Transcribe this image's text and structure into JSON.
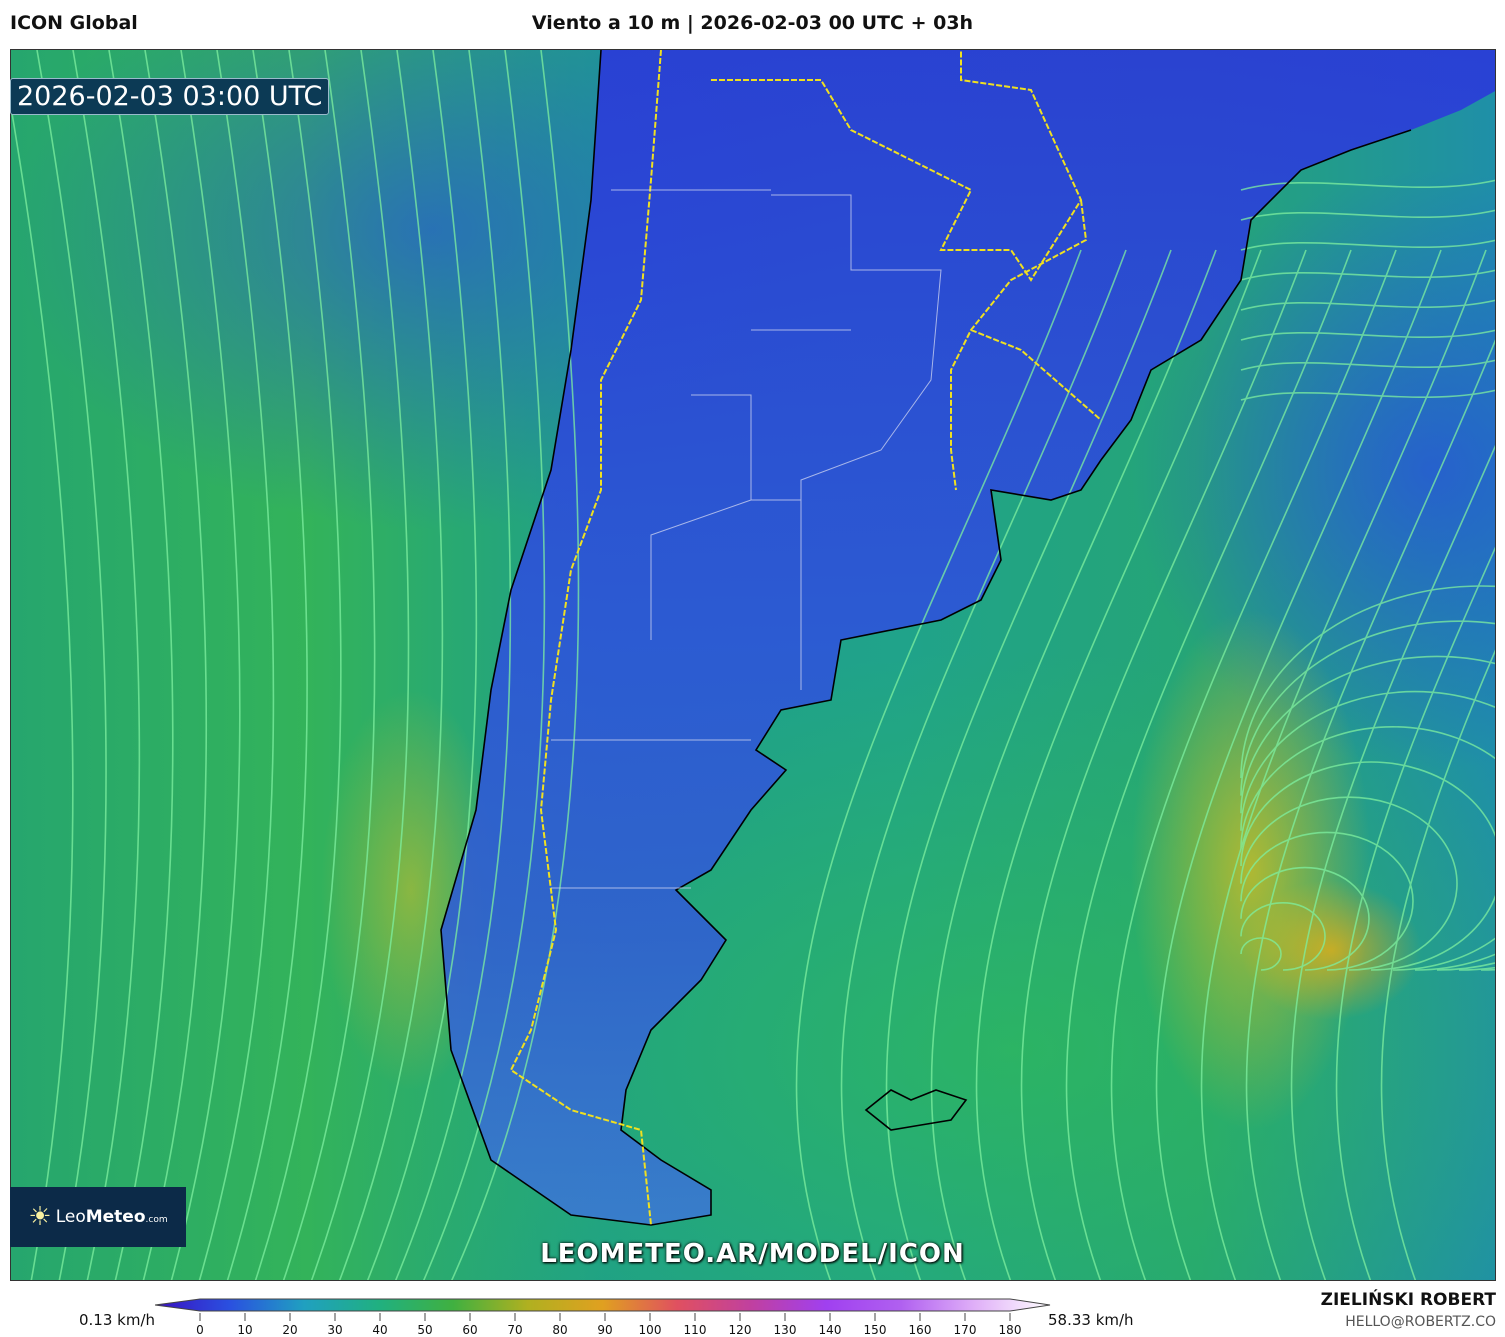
{
  "header": {
    "model": "ICON Global",
    "title": "Viento a 10 m | 2026-02-03 00 UTC + 03h"
  },
  "map": {
    "valid_time": "2026-02-03 03:00 UTC",
    "watermark_url": "LEOMETEO.AR/MODEL/ICON",
    "logo": {
      "leo": "Leo",
      "meteo": "Meteo",
      "tld": ".com"
    },
    "colors": {
      "land_wind": "#2a3de0",
      "ocean_wind": "#2bb36a",
      "strong_wind": "#d6b21e",
      "streamlines": "#7ef0a0",
      "borders": "#f0e020",
      "coast": "#000000"
    }
  },
  "colorbar": {
    "min_label": "0.13 km/h",
    "max_label": "58.33 km/h",
    "ticks": [
      "0",
      "10",
      "20",
      "30",
      "40",
      "50",
      "60",
      "70",
      "80",
      "90",
      "100",
      "110",
      "120",
      "130",
      "140",
      "150",
      "160",
      "170",
      "180"
    ],
    "stops": [
      "#3a10c0",
      "#2a50e0",
      "#20a0c0",
      "#20b080",
      "#40b040",
      "#b0b020",
      "#e0a020",
      "#e05060",
      "#c040a0",
      "#a040f0",
      "#b060f0",
      "#e0b0f8",
      "#ffffff"
    ]
  },
  "credits": {
    "author": "ZIELIŃSKI ROBERT",
    "email": "HELLO@ROBERTZ.CO"
  }
}
